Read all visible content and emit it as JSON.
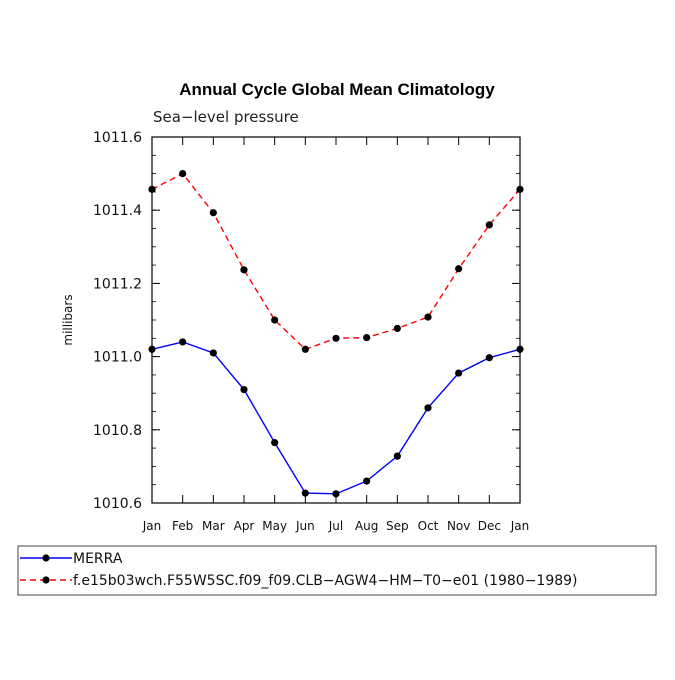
{
  "chart_data": {
    "type": "line",
    "title": "Annual Cycle Global Mean Climatology",
    "subtitle": "Sea−level pressure",
    "xlabel": "",
    "ylabel": "millibars",
    "categories": [
      "Jan",
      "Feb",
      "Mar",
      "Apr",
      "May",
      "Jun",
      "Jul",
      "Aug",
      "Sep",
      "Oct",
      "Nov",
      "Dec",
      "Jan"
    ],
    "ylim": [
      1010.6,
      1011.6
    ],
    "yticks": [
      1010.6,
      1010.8,
      1011.0,
      1011.2,
      1011.4,
      1011.6
    ],
    "ytick_labels": [
      "1010.6",
      "1010.8",
      "1011.0",
      "1011.2",
      "1011.4",
      "1011.6"
    ],
    "grid": false,
    "legend_position": "bottom",
    "series": [
      {
        "name": "MERRA",
        "color": "#0000ff",
        "dash": "solid",
        "values": [
          1011.02,
          1011.04,
          1011.01,
          1010.91,
          1010.765,
          1010.627,
          1010.625,
          1010.66,
          1010.728,
          1010.86,
          1010.955,
          1010.997,
          1011.02
        ]
      },
      {
        "name": "f.e15b03wch.F55W5SC.f09_f09.CLB−AGW4−HM−T0−e01 (1980−1989)",
        "color": "#ff0000",
        "dash": "dashed",
        "values": [
          1011.457,
          1011.5,
          1011.393,
          1011.237,
          1011.1,
          1011.02,
          1011.05,
          1011.052,
          1011.077,
          1011.108,
          1011.24,
          1011.36,
          1011.457
        ]
      }
    ]
  }
}
